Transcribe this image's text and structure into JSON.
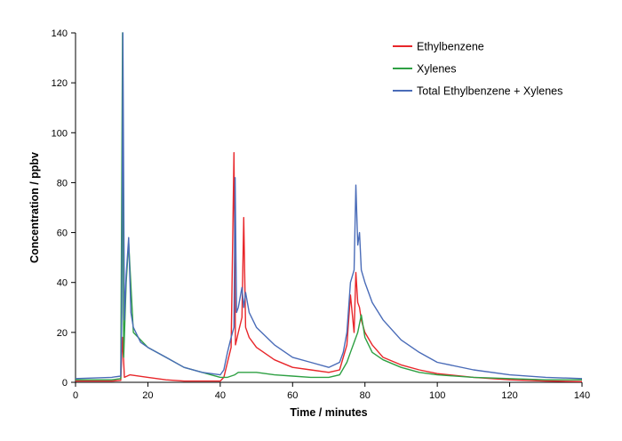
{
  "chart_data": {
    "type": "line",
    "title": "",
    "xlabel": "Time / minutes",
    "ylabel": "Concentration / ppbv",
    "xlim": [
      0,
      140
    ],
    "ylim": [
      0,
      140
    ],
    "xticks": [
      0,
      20,
      40,
      60,
      80,
      100,
      120,
      140
    ],
    "yticks": [
      0,
      20,
      40,
      60,
      80,
      100,
      120,
      140
    ],
    "grid": false,
    "legend_position": "top-right",
    "series": [
      {
        "name": "Ethylbenzene",
        "color": "#e8262a",
        "x": [
          0,
          10,
          12.5,
          13,
          13.5,
          15,
          20,
          25,
          30,
          35,
          40,
          41,
          42,
          43,
          43.8,
          44.2,
          45,
          46,
          46.5,
          47,
          48,
          50,
          55,
          60,
          65,
          70,
          73,
          75,
          76,
          77,
          77.5,
          78,
          78.5,
          79,
          80,
          82,
          85,
          90,
          95,
          100,
          110,
          120,
          130,
          140
        ],
        "values": [
          0.5,
          0.5,
          0.8,
          18,
          2,
          3,
          2,
          1,
          0.5,
          0.5,
          0.5,
          2,
          8,
          14,
          92,
          15,
          20,
          26,
          66,
          22,
          18,
          14,
          9,
          6,
          5,
          4,
          5,
          15,
          35,
          20,
          44,
          32,
          30,
          25,
          20,
          15,
          10,
          7,
          5,
          3.5,
          2,
          1,
          0.5,
          0.3
        ]
      },
      {
        "name": "Xylenes",
        "color": "#2ea043",
        "x": [
          0,
          10,
          12.5,
          13,
          13.3,
          14,
          14.7,
          16,
          20,
          25,
          30,
          35,
          40,
          42,
          44,
          45,
          47,
          50,
          55,
          60,
          65,
          70,
          73,
          75,
          76,
          77,
          78,
          79,
          80,
          82,
          85,
          90,
          95,
          100,
          110,
          120,
          130,
          140
        ],
        "values": [
          1,
          1,
          1.5,
          140,
          10,
          40,
          56,
          20,
          14,
          10,
          6,
          4,
          2,
          2,
          3,
          4,
          4,
          4,
          3,
          2.5,
          2,
          2,
          3,
          8,
          12,
          16,
          20,
          27,
          18,
          12,
          9,
          6,
          4,
          3,
          2,
          1.5,
          1,
          1
        ]
      },
      {
        "name": "Total Ethylbenzene + Xylenes",
        "color": "#4a6cb8",
        "x": [
          0,
          10,
          12.5,
          12.8,
          13.1,
          13.5,
          14,
          14.7,
          15.3,
          16,
          18,
          20,
          25,
          30,
          35,
          40,
          41,
          42,
          43,
          43.8,
          44.1,
          44.5,
          45,
          46,
          46.5,
          47,
          48,
          50,
          55,
          60,
          65,
          70,
          73,
          74,
          75,
          76,
          77,
          77.5,
          78,
          78.5,
          79,
          80,
          82,
          85,
          90,
          95,
          100,
          110,
          120,
          130,
          140
        ],
        "values": [
          1.5,
          2,
          2.5,
          28,
          140,
          25,
          43,
          58,
          28,
          22,
          16,
          14,
          10,
          6,
          4,
          3,
          5,
          12,
          18,
          22,
          82,
          28,
          30,
          38,
          30,
          36,
          28,
          22,
          15,
          10,
          8,
          6,
          8,
          12,
          20,
          40,
          45,
          79,
          55,
          60,
          45,
          40,
          32,
          25,
          17,
          12,
          8,
          5,
          3,
          2,
          1.5
        ]
      }
    ]
  }
}
